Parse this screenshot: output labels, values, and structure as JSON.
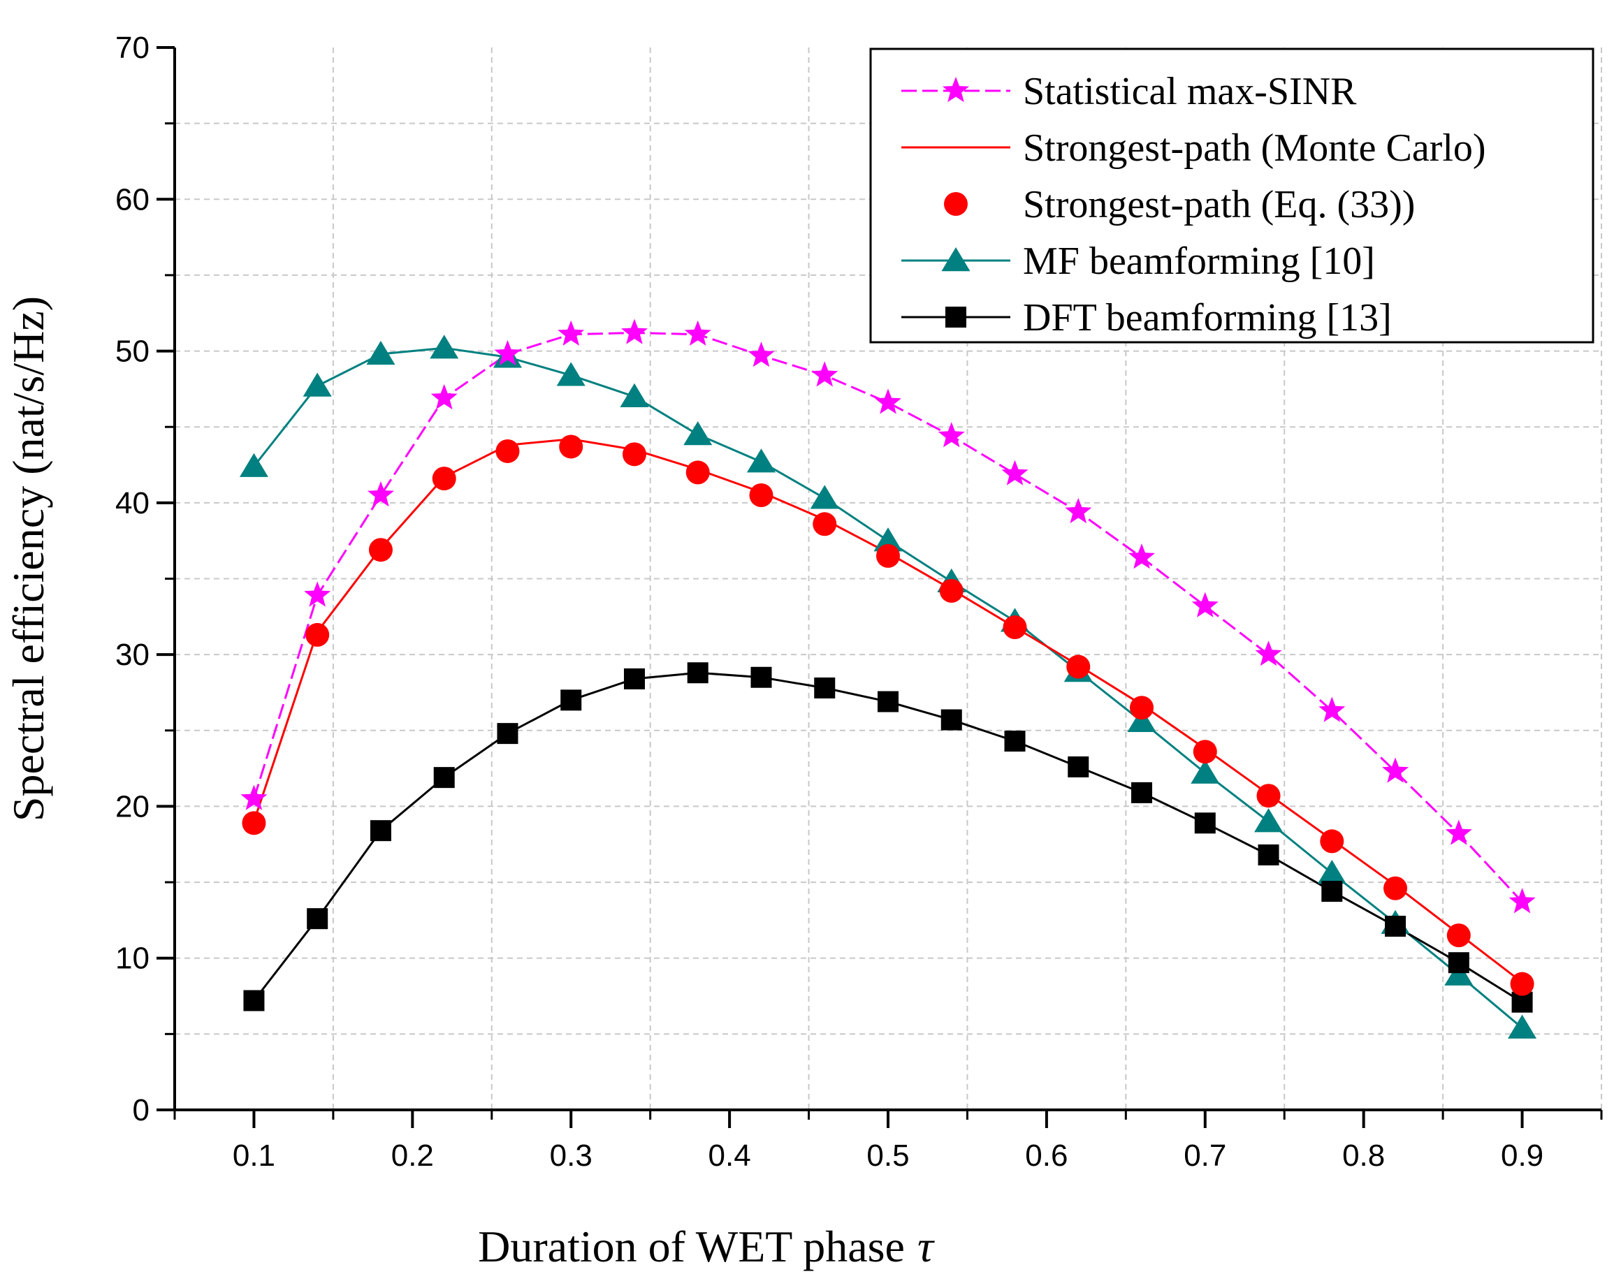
{
  "chart_data": {
    "type": "line",
    "title": "",
    "xlabel": "Duration of WET phase",
    "xlabel_symbol": "τ",
    "ylabel": "Spectral efficiency (nat/s/Hz)",
    "xlim": [
      0.05,
      0.95
    ],
    "ylim": [
      0,
      70
    ],
    "grid": true,
    "legend_position": "top-right",
    "x_ticks": [
      0.1,
      0.2,
      0.3,
      0.4,
      0.5,
      0.6,
      0.7,
      0.8,
      0.9
    ],
    "y_ticks": [
      0,
      10,
      20,
      30,
      40,
      50,
      60,
      70
    ],
    "x_tick_labels": [
      "0.1",
      "0.2",
      "0.3",
      "0.4",
      "0.5",
      "0.6",
      "0.7",
      "0.8",
      "0.9"
    ],
    "y_tick_labels": [
      "0",
      "10",
      "20",
      "30",
      "40",
      "50",
      "60",
      "70"
    ],
    "x": [
      0.1,
      0.14,
      0.18,
      0.22,
      0.26,
      0.3,
      0.34,
      0.38,
      0.42,
      0.46,
      0.5,
      0.54,
      0.58,
      0.62,
      0.66,
      0.7,
      0.74,
      0.78,
      0.82,
      0.86,
      0.9
    ],
    "series": [
      {
        "name": "Statistical max-SINR",
        "color": "#ff00ff",
        "marker": "star",
        "line": "dash",
        "values": [
          20.5,
          33.9,
          40.5,
          46.9,
          49.8,
          51.1,
          51.2,
          51.1,
          49.7,
          48.4,
          46.6,
          44.4,
          41.9,
          39.4,
          36.4,
          33.2,
          30.0,
          26.3,
          22.3,
          18.2,
          13.7
        ]
      },
      {
        "name": "Strongest-path (Monte Carlo)",
        "color": "#ff0000",
        "marker": "none",
        "line": "solid",
        "values": [
          19.0,
          31.5,
          37.0,
          41.7,
          43.8,
          44.2,
          43.5,
          42.2,
          40.7,
          38.9,
          36.7,
          34.3,
          31.8,
          29.3,
          26.7,
          23.8,
          20.8,
          17.8,
          14.8,
          11.6,
          8.4
        ]
      },
      {
        "name": "Strongest-path (Eq. (33))",
        "color": "#ff0000",
        "marker": "circle",
        "line": "none",
        "values": [
          18.9,
          31.3,
          36.9,
          41.6,
          43.4,
          43.7,
          43.2,
          42.0,
          40.5,
          38.6,
          36.5,
          34.2,
          31.8,
          29.2,
          26.5,
          23.6,
          20.7,
          17.7,
          14.6,
          11.5,
          8.3
        ]
      },
      {
        "name": "MF beamforming [10]",
        "color": "#008080",
        "marker": "triangle",
        "line": "solid",
        "values": [
          42.4,
          47.7,
          49.8,
          50.2,
          49.6,
          48.4,
          47.0,
          44.5,
          42.7,
          40.3,
          37.5,
          34.8,
          32.2,
          28.9,
          25.6,
          22.2,
          19.0,
          15.6,
          12.3,
          8.9,
          5.4
        ]
      },
      {
        "name": "DFT beamforming [13]",
        "color": "#000000",
        "marker": "square",
        "line": "solid",
        "values": [
          7.2,
          12.6,
          18.4,
          21.9,
          24.8,
          27.0,
          28.4,
          28.8,
          28.5,
          27.8,
          26.9,
          25.7,
          24.3,
          22.6,
          20.9,
          18.9,
          16.8,
          14.4,
          12.1,
          9.7,
          7.1
        ]
      }
    ]
  }
}
